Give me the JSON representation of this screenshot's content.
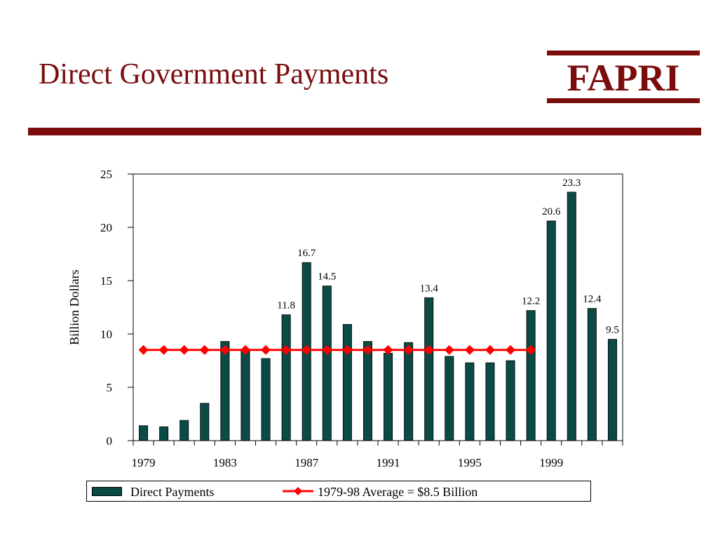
{
  "slide": {
    "title": "Direct Government Payments",
    "logo": "FAPRI",
    "accent_color": "#7a0c0c"
  },
  "chart_data": {
    "type": "bar",
    "ylabel": "Billion Dollars",
    "xlabel": "",
    "ylim": [
      0,
      25
    ],
    "yticks": [
      0,
      5,
      10,
      15,
      20,
      25
    ],
    "x_tick_labels": [
      "1979",
      "1983",
      "1987",
      "1991",
      "1995",
      "1999"
    ],
    "categories": [
      "1979",
      "1980",
      "1981",
      "1982",
      "1983",
      "1984",
      "1985",
      "1986",
      "1987",
      "1988",
      "1989",
      "1990",
      "1991",
      "1992",
      "1993",
      "1994",
      "1995",
      "1996",
      "1997",
      "1998",
      "1999",
      "2000",
      "2001",
      "2002"
    ],
    "series": [
      {
        "name": "Direct Payments",
        "color": "#0b4a45",
        "values": [
          1.4,
          1.3,
          1.9,
          3.5,
          9.3,
          8.4,
          7.7,
          11.8,
          16.7,
          14.5,
          10.9,
          9.3,
          8.2,
          9.2,
          13.4,
          7.9,
          7.3,
          7.3,
          7.5,
          12.2,
          20.6,
          23.3,
          12.4,
          9.5
        ],
        "data_labels": {
          "1986": "11.8",
          "1987": "16.7",
          "1988": "14.5",
          "1993": "13.4",
          "1998": "12.2",
          "1999": "20.6",
          "2000": "23.3",
          "2001": "12.4",
          "2002": "9.5"
        }
      },
      {
        "name": "1979-98 Average = $8.5 Billion",
        "type": "line",
        "color": "#ff0000",
        "x_range": [
          "1979",
          "1998"
        ],
        "value": 8.5
      }
    ],
    "legend": {
      "placement": "bottom"
    },
    "grid": false
  }
}
